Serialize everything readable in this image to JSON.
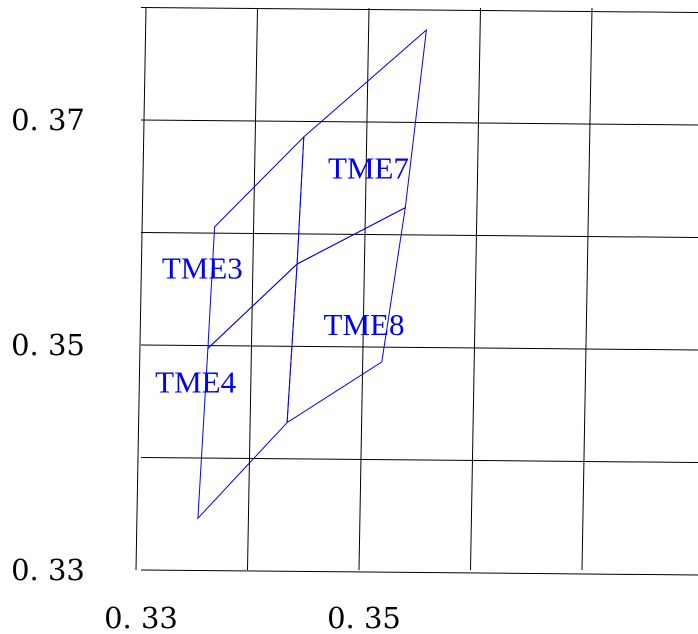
{
  "chart_data": {
    "type": "line",
    "title": "",
    "xlabel": "",
    "ylabel": "",
    "xlim": [
      0.32,
      0.37
    ],
    "ylim": [
      0.33,
      0.38
    ],
    "grid": true,
    "x_ticks": [
      {
        "value": 0.33,
        "label": "0. 33"
      },
      {
        "value": 0.35,
        "label": "0. 35"
      }
    ],
    "y_ticks": [
      {
        "value": 0.33,
        "label": "0. 33"
      },
      {
        "value": 0.35,
        "label": "0. 35"
      },
      {
        "value": 0.37,
        "label": "0. 37"
      }
    ],
    "line_color": "#0000ff",
    "grid_color": "#000000",
    "regions": [
      {
        "name": "TME3",
        "label_at": [
          0.3355,
          0.3559
        ],
        "vertices": [
          [
            0.3366,
            0.3605
          ],
          [
            0.3446,
            0.3685
          ],
          [
            0.344,
            0.3572
          ],
          [
            0.336,
            0.3497
          ]
        ]
      },
      {
        "name": "TME4",
        "label_at": [
          0.3349,
          0.3458
        ],
        "vertices": [
          [
            0.336,
            0.3497
          ],
          [
            0.344,
            0.3572
          ],
          [
            0.3431,
            0.3431
          ],
          [
            0.3351,
            0.3346
          ]
        ]
      },
      {
        "name": "TME7",
        "label_at": [
          0.3504,
          0.3648
        ],
        "vertices": [
          [
            0.3446,
            0.3685
          ],
          [
            0.3556,
            0.378
          ],
          [
            0.3537,
            0.3622
          ],
          [
            0.344,
            0.3572
          ]
        ]
      },
      {
        "name": "TME8",
        "label_at": [
          0.35,
          0.3509
        ],
        "vertices": [
          [
            0.344,
            0.3572
          ],
          [
            0.3537,
            0.3622
          ],
          [
            0.3516,
            0.3485
          ],
          [
            0.3431,
            0.3431
          ]
        ]
      }
    ]
  }
}
